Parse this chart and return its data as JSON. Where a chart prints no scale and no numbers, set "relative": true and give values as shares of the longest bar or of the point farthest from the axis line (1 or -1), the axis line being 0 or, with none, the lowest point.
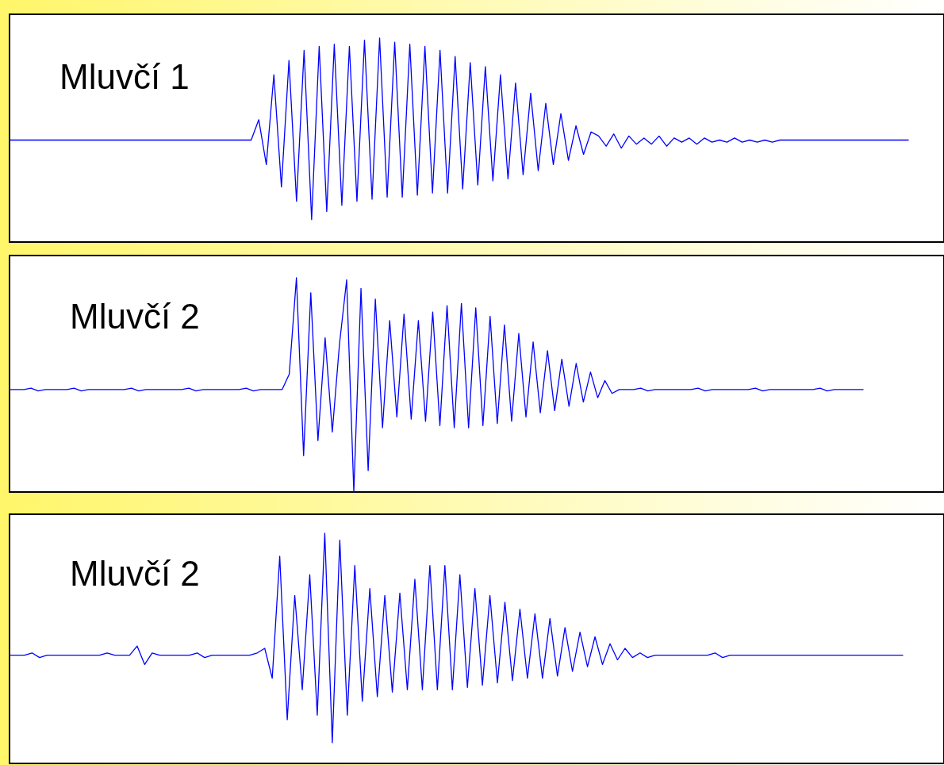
{
  "chart_data": [
    {
      "type": "line",
      "relative": true,
      "annotations": [
        "Mluvčí 1"
      ],
      "categories": [
        null,
        null,
        null,
        null,
        null,
        null,
        null,
        null,
        null,
        null,
        null,
        null,
        null,
        null,
        null,
        null,
        null,
        null,
        null,
        null,
        null,
        null,
        null,
        null,
        null,
        null,
        null,
        null,
        null,
        null,
        null,
        null,
        null,
        null,
        null,
        null,
        null,
        null,
        null,
        null,
        null,
        null,
        null,
        null,
        null,
        null,
        null,
        null,
        null,
        null,
        null,
        null,
        null,
        null,
        null,
        null,
        null,
        null,
        null,
        null,
        null,
        null,
        null,
        null,
        null,
        null,
        null,
        null,
        null,
        null,
        null,
        null,
        null,
        null,
        null,
        null,
        null,
        null,
        null,
        null,
        null,
        null,
        null,
        null,
        null,
        null,
        null,
        null,
        null,
        null,
        null,
        null,
        null,
        null,
        null,
        null,
        null,
        null,
        null,
        null,
        null,
        null,
        null,
        null,
        null,
        null,
        null,
        null,
        null,
        null,
        null,
        null,
        null,
        null,
        null,
        null,
        null,
        null,
        null,
        null
      ],
      "series": [
        {
          "color": "#0000ff",
          "values": [
            0.5,
            0.5,
            0.5,
            0.5,
            0.5,
            0.5,
            0.5,
            0.5,
            0.5,
            0.5,
            0.5,
            0.5,
            0.5,
            0.5,
            0.5,
            0.5,
            0.5,
            0.5,
            0.5,
            0.5,
            0.5,
            0.5,
            0.5,
            0.5,
            0.5,
            0.5,
            0.5,
            0.5,
            0.5,
            0.5,
            0.5,
            0.5,
            0.5,
            0.6,
            0.38,
            0.82,
            0.27,
            0.89,
            0.2,
            0.94,
            0.11,
            0.96,
            0.15,
            0.97,
            0.18,
            0.96,
            0.2,
            0.99,
            0.21,
            1.0,
            0.22,
            0.98,
            0.22,
            0.97,
            0.23,
            0.96,
            0.24,
            0.94,
            0.24,
            0.91,
            0.26,
            0.88,
            0.28,
            0.86,
            0.3,
            0.82,
            0.31,
            0.78,
            0.33,
            0.73,
            0.35,
            0.68,
            0.38,
            0.63,
            0.4,
            0.57,
            0.43,
            0.54,
            0.52,
            0.47,
            0.53,
            0.46,
            0.52,
            0.48,
            0.51,
            0.48,
            0.52,
            0.47,
            0.51,
            0.49,
            0.51,
            0.48,
            0.51,
            0.49,
            0.5,
            0.49,
            0.51,
            0.49,
            0.5,
            0.49,
            0.5,
            0.49,
            0.5,
            0.5,
            0.5,
            0.5,
            0.5,
            0.5,
            0.5,
            0.5,
            0.5,
            0.5,
            0.5,
            0.5,
            0.5,
            0.5,
            0.5,
            0.5,
            0.5,
            0.5
          ]
        }
      ]
    },
    {
      "type": "line",
      "relative": true,
      "annotations": [
        "Mluvčí 2"
      ],
      "categories": [
        null,
        null,
        null,
        null,
        null,
        null,
        null,
        null,
        null,
        null,
        null,
        null,
        null,
        null,
        null,
        null,
        null,
        null,
        null,
        null,
        null,
        null,
        null,
        null,
        null,
        null,
        null,
        null,
        null,
        null,
        null,
        null,
        null,
        null,
        null,
        null,
        null,
        null,
        null,
        null,
        null,
        null,
        null,
        null,
        null,
        null,
        null,
        null,
        null,
        null,
        null,
        null,
        null,
        null,
        null,
        null,
        null,
        null,
        null,
        null,
        null,
        null,
        null,
        null,
        null,
        null,
        null,
        null,
        null,
        null,
        null,
        null,
        null,
        null,
        null,
        null,
        null,
        null,
        null,
        null,
        null,
        null,
        null,
        null,
        null,
        null,
        null,
        null,
        null,
        null,
        null,
        null,
        null,
        null,
        null,
        null,
        null,
        null,
        null,
        null,
        null,
        null,
        null,
        null,
        null,
        null,
        null,
        null,
        null,
        null,
        null,
        null,
        null,
        null,
        null,
        null,
        null,
        null,
        null,
        null
      ],
      "series": [
        {
          "color": "#0000ff",
          "values": [
            0.478,
            0.478,
            0.478,
            0.485,
            0.472,
            0.478,
            0.478,
            0.478,
            0.478,
            0.485,
            0.472,
            0.478,
            0.478,
            0.478,
            0.478,
            0.478,
            0.478,
            0.485,
            0.472,
            0.478,
            0.478,
            0.478,
            0.478,
            0.478,
            0.478,
            0.485,
            0.472,
            0.478,
            0.478,
            0.478,
            0.478,
            0.478,
            0.478,
            0.485,
            0.472,
            0.478,
            0.478,
            0.478,
            0.478,
            0.55,
            1.0,
            0.17,
            0.93,
            0.24,
            0.72,
            0.28,
            0.69,
            0.99,
            0.0,
            0.95,
            0.1,
            0.9,
            0.3,
            0.8,
            0.35,
            0.83,
            0.34,
            0.8,
            0.33,
            0.84,
            0.31,
            0.87,
            0.3,
            0.88,
            0.3,
            0.86,
            0.31,
            0.82,
            0.32,
            0.78,
            0.33,
            0.74,
            0.35,
            0.7,
            0.37,
            0.66,
            0.38,
            0.62,
            0.4,
            0.6,
            0.42,
            0.56,
            0.44,
            0.52,
            0.46,
            0.478,
            0.478,
            0.478,
            0.485,
            0.472,
            0.478,
            0.478,
            0.478,
            0.478,
            0.478,
            0.478,
            0.485,
            0.472,
            0.478,
            0.478,
            0.478,
            0.478,
            0.478,
            0.478,
            0.485,
            0.472,
            0.478,
            0.478,
            0.478,
            0.478,
            0.478,
            0.478,
            0.478,
            0.485,
            0.472,
            0.478,
            0.478,
            0.478,
            0.478,
            0.478
          ]
        }
      ]
    },
    {
      "type": "line",
      "relative": true,
      "annotations": [
        "Mluvčí 2"
      ],
      "categories": [
        null,
        null,
        null,
        null,
        null,
        null,
        null,
        null,
        null,
        null,
        null,
        null,
        null,
        null,
        null,
        null,
        null,
        null,
        null,
        null,
        null,
        null,
        null,
        null,
        null,
        null,
        null,
        null,
        null,
        null,
        null,
        null,
        null,
        null,
        null,
        null,
        null,
        null,
        null,
        null,
        null,
        null,
        null,
        null,
        null,
        null,
        null,
        null,
        null,
        null,
        null,
        null,
        null,
        null,
        null,
        null,
        null,
        null,
        null,
        null,
        null,
        null,
        null,
        null,
        null,
        null,
        null,
        null,
        null,
        null,
        null,
        null,
        null,
        null,
        null,
        null,
        null,
        null,
        null,
        null,
        null,
        null,
        null,
        null,
        null,
        null,
        null,
        null,
        null,
        null,
        null,
        null,
        null,
        null,
        null,
        null,
        null,
        null,
        null,
        null,
        null,
        null,
        null,
        null,
        null,
        null,
        null,
        null,
        null,
        null,
        null,
        null,
        null,
        null,
        null,
        null,
        null,
        null,
        null,
        null
      ],
      "series": [
        {
          "color": "#0000ff",
          "values": [
            0.47,
            0.47,
            0.47,
            0.48,
            0.46,
            0.47,
            0.47,
            0.47,
            0.47,
            0.47,
            0.47,
            0.47,
            0.47,
            0.48,
            0.47,
            0.47,
            0.47,
            0.51,
            0.43,
            0.48,
            0.47,
            0.47,
            0.47,
            0.47,
            0.47,
            0.48,
            0.46,
            0.47,
            0.47,
            0.47,
            0.47,
            0.47,
            0.47,
            0.48,
            0.5,
            0.37,
            0.9,
            0.19,
            0.73,
            0.32,
            0.82,
            0.21,
            1.0,
            0.09,
            0.97,
            0.21,
            0.86,
            0.27,
            0.76,
            0.29,
            0.73,
            0.31,
            0.74,
            0.32,
            0.8,
            0.32,
            0.86,
            0.32,
            0.86,
            0.32,
            0.82,
            0.33,
            0.76,
            0.34,
            0.73,
            0.35,
            0.7,
            0.36,
            0.67,
            0.37,
            0.65,
            0.37,
            0.63,
            0.38,
            0.59,
            0.4,
            0.57,
            0.42,
            0.55,
            0.43,
            0.52,
            0.45,
            0.5,
            0.46,
            0.48,
            0.46,
            0.47,
            0.47,
            0.47,
            0.47,
            0.47,
            0.47,
            0.47,
            0.47,
            0.48,
            0.46,
            0.47,
            0.47,
            0.47,
            0.47,
            0.47,
            0.47,
            0.47,
            0.47,
            0.47,
            0.47,
            0.47,
            0.47,
            0.47,
            0.47,
            0.47,
            0.47,
            0.47,
            0.47,
            0.47,
            0.47,
            0.47,
            0.47,
            0.47,
            0.47
          ]
        }
      ]
    }
  ]
}
